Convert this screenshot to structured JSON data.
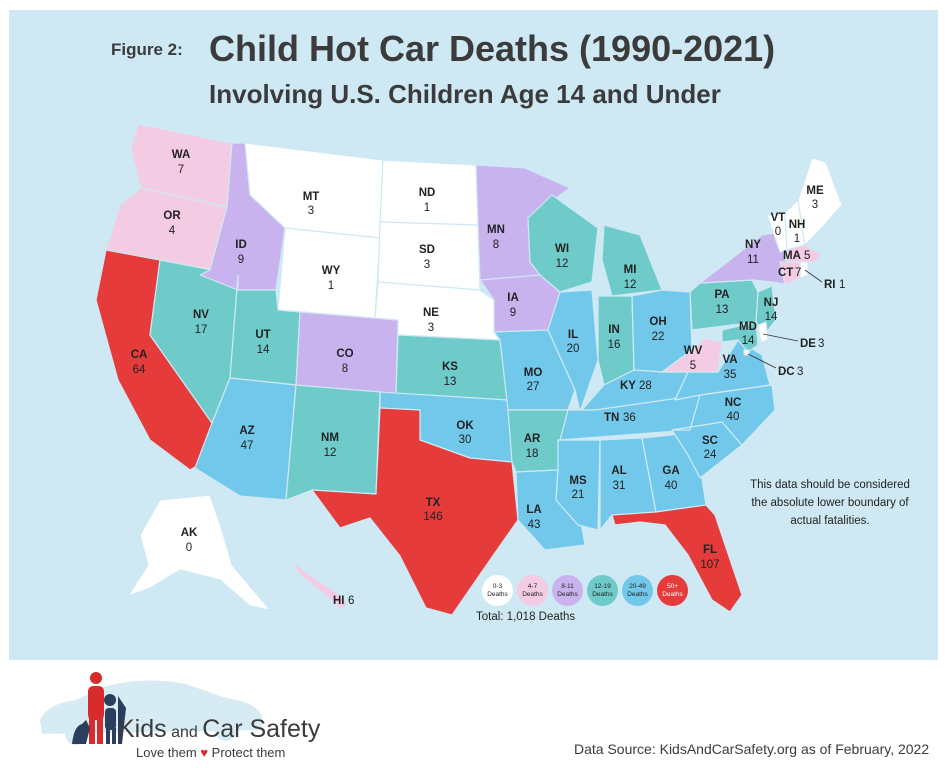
{
  "header": {
    "figure_label": "Figure 2:",
    "title": "Child Hot Car Deaths (1990-2021)",
    "subtitle": "Involving U.S. Children Age 14 and Under"
  },
  "colors": {
    "c0_3": "#ffffff",
    "c4_7": "#f3cbe2",
    "c8_11": "#c9b3ee",
    "c12_19": "#6ecbc9",
    "c20_49": "#72c8ea",
    "c50_plus": "#e63b3b",
    "background": "#cfe9f4"
  },
  "states": [
    {
      "abbr": "WA",
      "deaths": "7",
      "bin": "c4_7"
    },
    {
      "abbr": "OR",
      "deaths": "4",
      "bin": "c4_7"
    },
    {
      "abbr": "CA",
      "deaths": "64",
      "bin": "c50_plus"
    },
    {
      "abbr": "NV",
      "deaths": "17",
      "bin": "c12_19"
    },
    {
      "abbr": "ID",
      "deaths": "9",
      "bin": "c8_11"
    },
    {
      "abbr": "MT",
      "deaths": "3",
      "bin": "c0_3"
    },
    {
      "abbr": "WY",
      "deaths": "1",
      "bin": "c0_3"
    },
    {
      "abbr": "UT",
      "deaths": "14",
      "bin": "c12_19"
    },
    {
      "abbr": "AZ",
      "deaths": "47",
      "bin": "c20_49"
    },
    {
      "abbr": "CO",
      "deaths": "8",
      "bin": "c8_11"
    },
    {
      "abbr": "NM",
      "deaths": "12",
      "bin": "c12_19"
    },
    {
      "abbr": "ND",
      "deaths": "1",
      "bin": "c0_3"
    },
    {
      "abbr": "SD",
      "deaths": "3",
      "bin": "c0_3"
    },
    {
      "abbr": "NE",
      "deaths": "3",
      "bin": "c0_3"
    },
    {
      "abbr": "KS",
      "deaths": "13",
      "bin": "c12_19"
    },
    {
      "abbr": "OK",
      "deaths": "30",
      "bin": "c20_49"
    },
    {
      "abbr": "TX",
      "deaths": "146",
      "bin": "c50_plus"
    },
    {
      "abbr": "MN",
      "deaths": "8",
      "bin": "c8_11"
    },
    {
      "abbr": "IA",
      "deaths": "9",
      "bin": "c8_11"
    },
    {
      "abbr": "MO",
      "deaths": "27",
      "bin": "c20_49"
    },
    {
      "abbr": "AR",
      "deaths": "18",
      "bin": "c12_19"
    },
    {
      "abbr": "LA",
      "deaths": "43",
      "bin": "c20_49"
    },
    {
      "abbr": "WI",
      "deaths": "12",
      "bin": "c12_19"
    },
    {
      "abbr": "IL",
      "deaths": "20",
      "bin": "c20_49"
    },
    {
      "abbr": "MI",
      "deaths": "12",
      "bin": "c12_19"
    },
    {
      "abbr": "IN",
      "deaths": "16",
      "bin": "c12_19"
    },
    {
      "abbr": "OH",
      "deaths": "22",
      "bin": "c20_49"
    },
    {
      "abbr": "KY",
      "deaths": "28",
      "bin": "c20_49"
    },
    {
      "abbr": "TN",
      "deaths": "36",
      "bin": "c20_49"
    },
    {
      "abbr": "MS",
      "deaths": "21",
      "bin": "c20_49"
    },
    {
      "abbr": "AL",
      "deaths": "31",
      "bin": "c20_49"
    },
    {
      "abbr": "GA",
      "deaths": "40",
      "bin": "c20_49"
    },
    {
      "abbr": "FL",
      "deaths": "107",
      "bin": "c50_plus"
    },
    {
      "abbr": "SC",
      "deaths": "24",
      "bin": "c20_49"
    },
    {
      "abbr": "NC",
      "deaths": "40",
      "bin": "c20_49"
    },
    {
      "abbr": "VA",
      "deaths": "35",
      "bin": "c20_49"
    },
    {
      "abbr": "WV",
      "deaths": "5",
      "bin": "c4_7"
    },
    {
      "abbr": "PA",
      "deaths": "13",
      "bin": "c12_19"
    },
    {
      "abbr": "NY",
      "deaths": "11",
      "bin": "c8_11"
    },
    {
      "abbr": "VT",
      "deaths": "0",
      "bin": "c0_3"
    },
    {
      "abbr": "NH",
      "deaths": "1",
      "bin": "c0_3"
    },
    {
      "abbr": "ME",
      "deaths": "3",
      "bin": "c0_3"
    },
    {
      "abbr": "MA",
      "deaths": "5",
      "bin": "c4_7"
    },
    {
      "abbr": "CT",
      "deaths": "7",
      "bin": "c4_7"
    },
    {
      "abbr": "RI",
      "deaths": "1",
      "bin": "c0_3"
    },
    {
      "abbr": "NJ",
      "deaths": "14",
      "bin": "c12_19"
    },
    {
      "abbr": "DE",
      "deaths": "3",
      "bin": "c0_3"
    },
    {
      "abbr": "MD",
      "deaths": "14",
      "bin": "c12_19"
    },
    {
      "abbr": "DC",
      "deaths": "3",
      "bin": "c0_3"
    },
    {
      "abbr": "AK",
      "deaths": "0",
      "bin": "c0_3"
    },
    {
      "abbr": "HI",
      "deaths": "6",
      "bin": "c4_7"
    }
  ],
  "note": "This data should be considered the absolute lower boundary of actual fatalities.",
  "legend": [
    {
      "range": "0-3",
      "label": "Deaths",
      "bin": "c0_3"
    },
    {
      "range": "4-7",
      "label": "Deaths",
      "bin": "c4_7"
    },
    {
      "range": "8-11",
      "label": "Deaths",
      "bin": "c8_11"
    },
    {
      "range": "12-19",
      "label": "Deaths",
      "bin": "c12_19"
    },
    {
      "range": "20-49",
      "label": "Deaths",
      "bin": "c20_49"
    },
    {
      "range": "50+",
      "label": "Deaths",
      "bin": "c50_plus"
    }
  ],
  "total": "Total: 1,018 Deaths",
  "brand": {
    "name_kids": "Kids",
    "name_and": " and ",
    "name_car_safety": "Car Safety",
    "tagline_left": "Love them",
    "tagline_right": "Protect them",
    "logo_icon": "family-car-icon",
    "heart_icon": "heart-icon"
  },
  "source": "Data Source: KidsAndCarSafety.org as of February, 2022"
}
